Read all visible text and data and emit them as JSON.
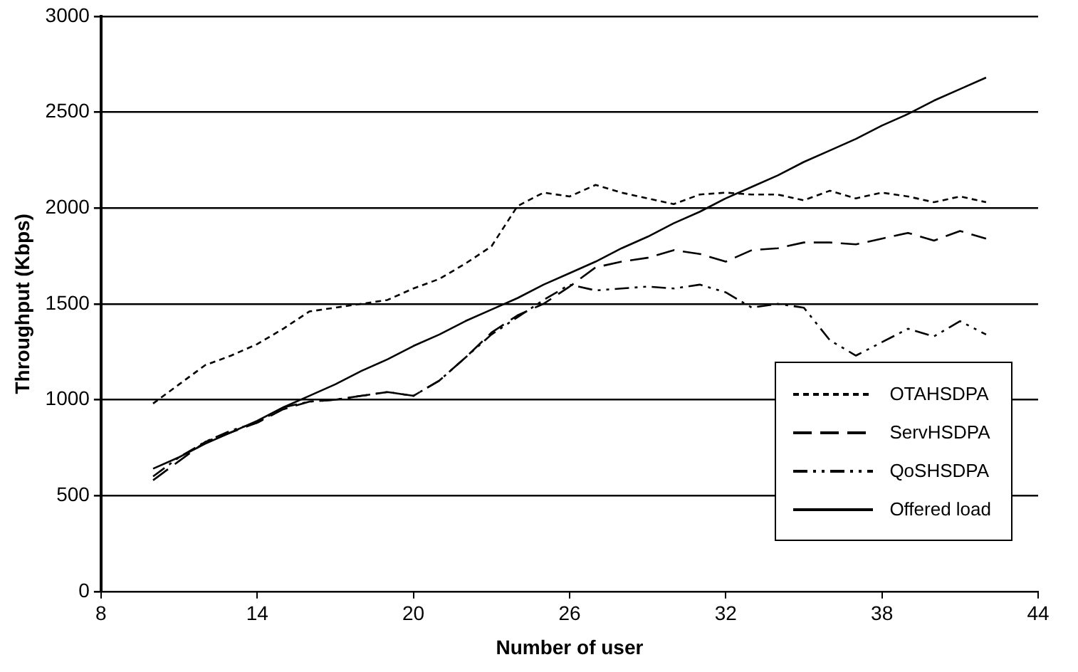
{
  "chart_data": {
    "type": "line",
    "xlabel": "Number of user",
    "ylabel": "Throughput (Kbps)",
    "x": [
      10,
      11,
      12,
      13,
      14,
      15,
      16,
      17,
      18,
      19,
      20,
      21,
      22,
      23,
      24,
      25,
      26,
      27,
      28,
      29,
      30,
      31,
      32,
      33,
      34,
      35,
      36,
      37,
      38,
      39,
      40,
      41,
      42
    ],
    "series": [
      {
        "name": "OTAHSDPA",
        "color": "#000000",
        "line_style": "dotted",
        "values": [
          980,
          1080,
          1180,
          1230,
          1290,
          1370,
          1460,
          1480,
          1500,
          1520,
          1580,
          1630,
          1710,
          1800,
          2010,
          2080,
          2060,
          2120,
          2080,
          2050,
          2020,
          2070,
          2080,
          2070,
          2070,
          2040,
          2090,
          2050,
          2080,
          2060,
          2030,
          2060,
          2030
        ]
      },
      {
        "name": "ServHSDPA",
        "color": "#000000",
        "line_style": "dashed",
        "values": [
          580,
          680,
          780,
          830,
          880,
          950,
          990,
          1000,
          1020,
          1040,
          1020,
          1100,
          1220,
          1350,
          1440,
          1500,
          1590,
          1690,
          1720,
          1740,
          1780,
          1760,
          1720,
          1780,
          1790,
          1820,
          1820,
          1810,
          1840,
          1870,
          1830,
          1880,
          1840
        ]
      },
      {
        "name": "QoSHSDPA",
        "color": "#000000",
        "line_style": "dashdot",
        "values": [
          600,
          700,
          780,
          840,
          880,
          960,
          990,
          1000,
          1020,
          1040,
          1020,
          1100,
          1220,
          1340,
          1430,
          1520,
          1600,
          1570,
          1580,
          1590,
          1580,
          1600,
          1560,
          1480,
          1500,
          1480,
          1310,
          1230,
          1300,
          1370,
          1330,
          1410,
          1340
        ]
      },
      {
        "name": "Offered load",
        "color": "#000000",
        "line_style": "solid",
        "values": [
          640,
          700,
          770,
          830,
          890,
          960,
          1020,
          1080,
          1150,
          1210,
          1280,
          1340,
          1410,
          1470,
          1530,
          1600,
          1660,
          1720,
          1790,
          1850,
          1920,
          1980,
          2050,
          2110,
          2170,
          2240,
          2300,
          2360,
          2430,
          2490,
          2560,
          2620,
          2680
        ]
      }
    ],
    "xlim": [
      8,
      44
    ],
    "xticks": [
      8,
      14,
      20,
      26,
      32,
      38,
      44
    ],
    "ylim": [
      0,
      3000
    ],
    "yticks": [
      0,
      500,
      1000,
      1500,
      2000,
      2500,
      3000
    ],
    "grid": "y",
    "legend": "bottom right",
    "marker": "none"
  }
}
